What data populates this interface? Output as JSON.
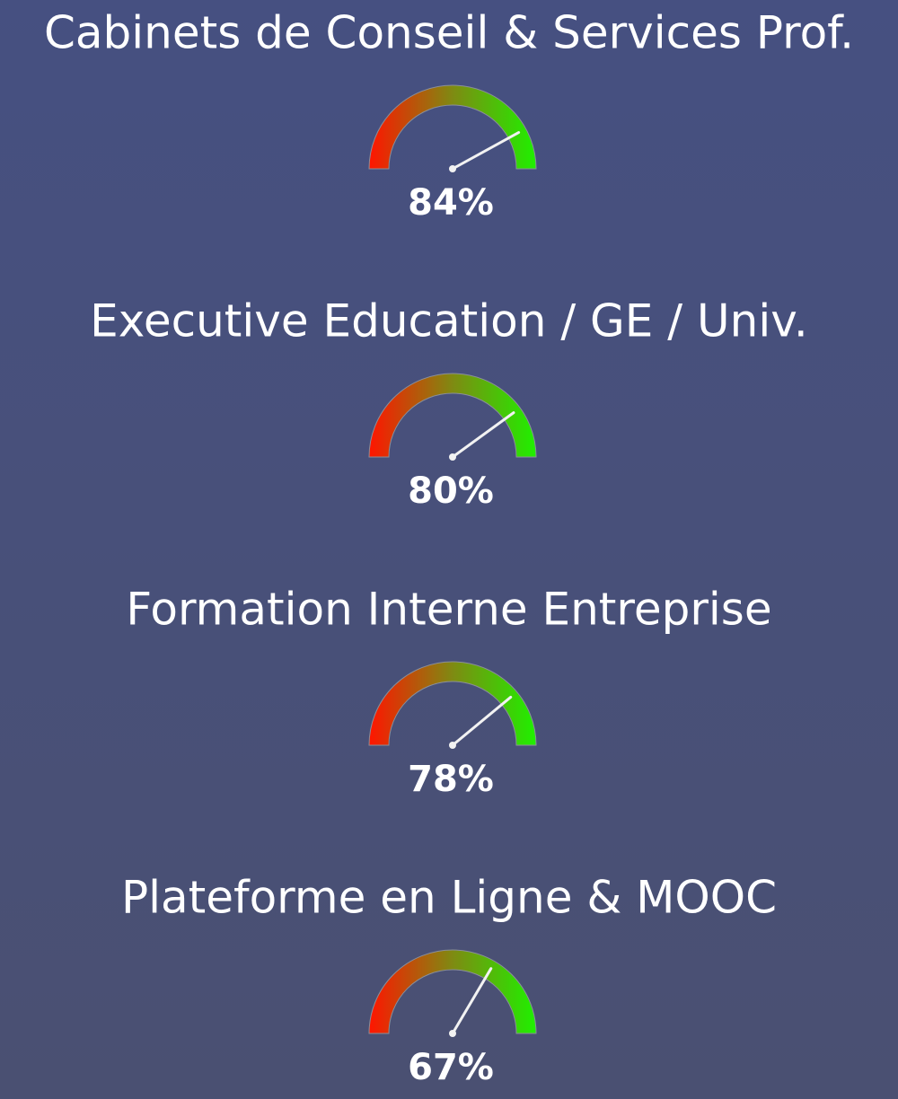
{
  "chart_data": [
    {
      "type": "gauge",
      "title": "Cabinets de Conseil & Services Prof.",
      "values": [
        84
      ],
      "value_labels": [
        "84%"
      ],
      "ylim": [
        0,
        100
      ]
    },
    {
      "type": "gauge",
      "title": "Executive Education / GE / Univ.",
      "values": [
        80
      ],
      "value_labels": [
        "80%"
      ],
      "ylim": [
        0,
        100
      ]
    },
    {
      "type": "gauge",
      "title": "Formation Interne Entreprise",
      "values": [
        78
      ],
      "value_labels": [
        "78%"
      ],
      "ylim": [
        0,
        100
      ]
    },
    {
      "type": "gauge",
      "title": "Plateforme en Ligne & MOOC",
      "values": [
        67
      ],
      "value_labels": [
        "67%"
      ],
      "ylim": [
        0,
        100
      ]
    }
  ]
}
